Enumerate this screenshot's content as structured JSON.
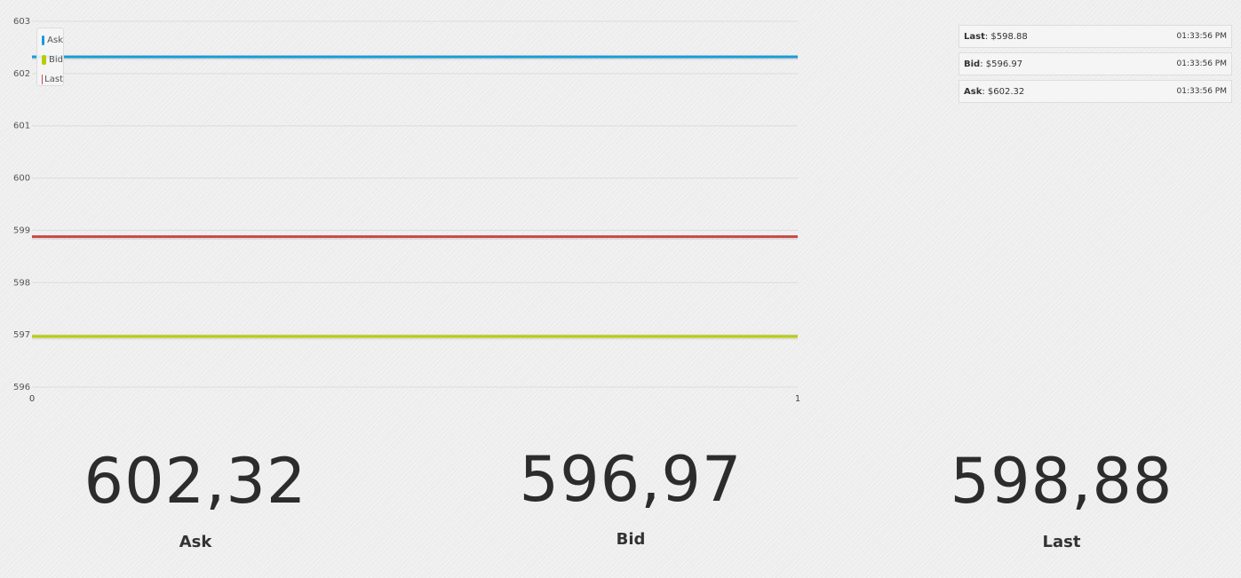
{
  "chart_data": {
    "type": "line",
    "x": [
      0,
      1
    ],
    "xlim": [
      0,
      1
    ],
    "xticks": [
      "0",
      "1"
    ],
    "ylim": [
      596,
      603
    ],
    "yticks": [
      "596",
      "597",
      "598",
      "599",
      "600",
      "601",
      "602",
      "603"
    ],
    "grid": true,
    "legend_position": "top-left",
    "series": [
      {
        "name": "Ask",
        "color": "#1a9bd7",
        "values": [
          602.32,
          602.32
        ]
      },
      {
        "name": "Bid",
        "color": "#b9cc0a",
        "values": [
          596.97,
          596.97
        ]
      },
      {
        "name": "Last",
        "color": "#cc4b4b",
        "values": [
          598.88,
          598.88
        ]
      }
    ]
  },
  "ticker": [
    {
      "label": "Last",
      "value": ": $598.88",
      "time": "01:33:56 PM"
    },
    {
      "label": "Bid",
      "value": ": $596.97",
      "time": "01:33:56 PM"
    },
    {
      "label": "Ask",
      "value": ": $602.32",
      "time": "01:33:56 PM"
    }
  ],
  "big_numbers": [
    {
      "value": "602,32",
      "label": "Ask"
    },
    {
      "value": "596,97",
      "label": "Bid"
    },
    {
      "value": "598,88",
      "label": "Last"
    }
  ]
}
